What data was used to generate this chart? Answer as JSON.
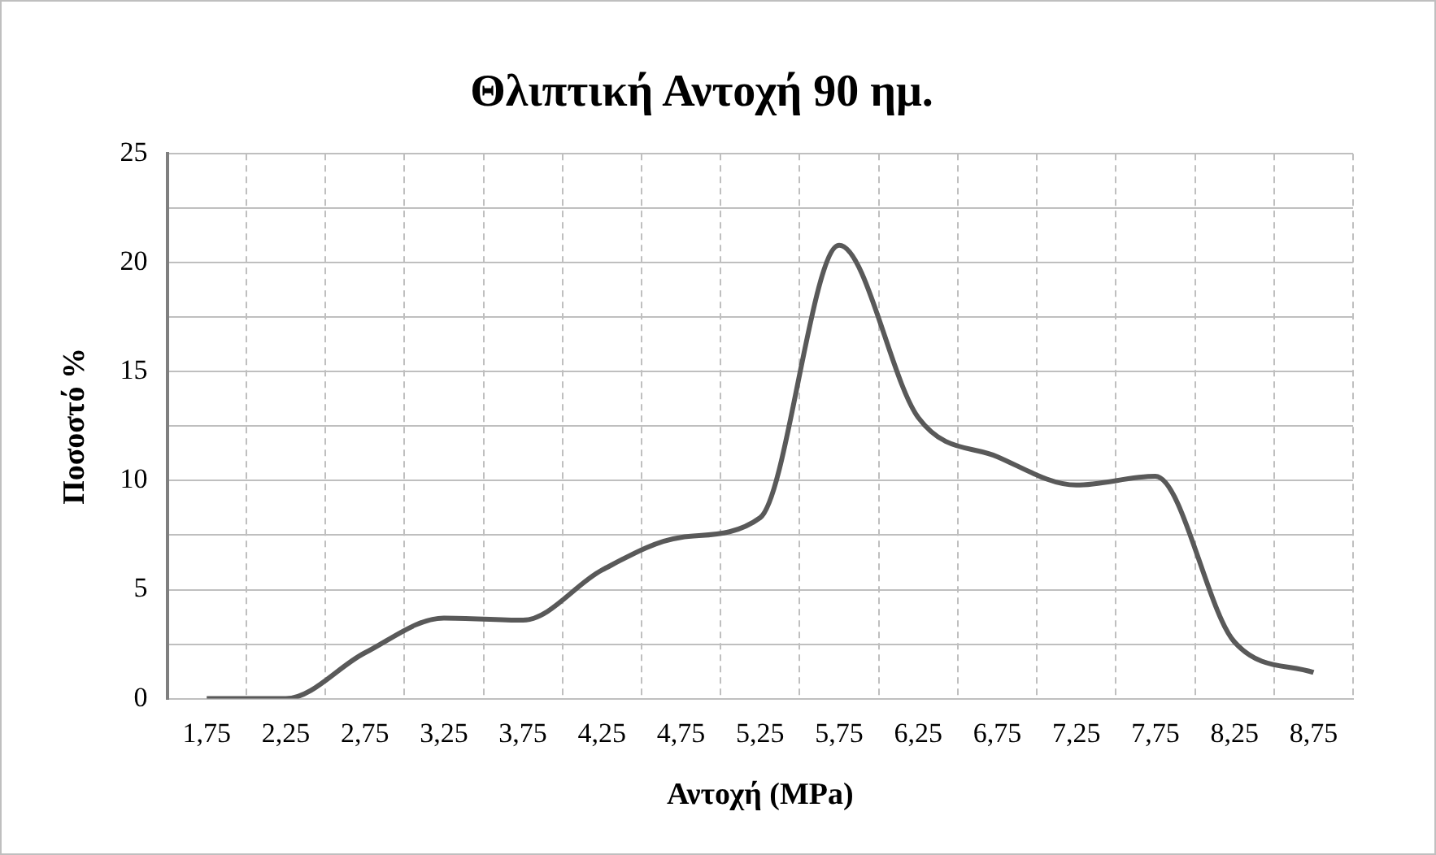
{
  "chart_data": {
    "type": "line",
    "title": "Θλιπτική Αντοχή 90 ημ.",
    "xlabel": "Αντοχή (MPa)",
    "ylabel": "Ποσοστό %",
    "categories": [
      "1,75",
      "2,25",
      "2,75",
      "3,25",
      "3,75",
      "4,25",
      "4,75",
      "5,25",
      "5,75",
      "6,25",
      "6,75",
      "7,25",
      "7,75",
      "8,25",
      "8,75"
    ],
    "series": [
      {
        "color": "#595959",
        "values": [
          0,
          0,
          2.1,
          3.7,
          3.6,
          5.9,
          7.4,
          8.3,
          20.8,
          12.9,
          11.1,
          9.8,
          10.2,
          2.6,
          1.2
        ]
      }
    ],
    "ylim": [
      0,
      25
    ],
    "yticks": [
      0,
      {
        "value": 2.5,
        "label": null
      },
      5,
      {
        "value": 7.5,
        "label": null
      },
      10,
      {
        "value": 12.5,
        "label": null
      },
      15,
      {
        "value": 17.5,
        "label": null
      },
      20,
      {
        "value": 22.5,
        "label": null
      },
      25
    ],
    "grid": true,
    "legend": false,
    "marker": "none",
    "line_style": "solid"
  }
}
